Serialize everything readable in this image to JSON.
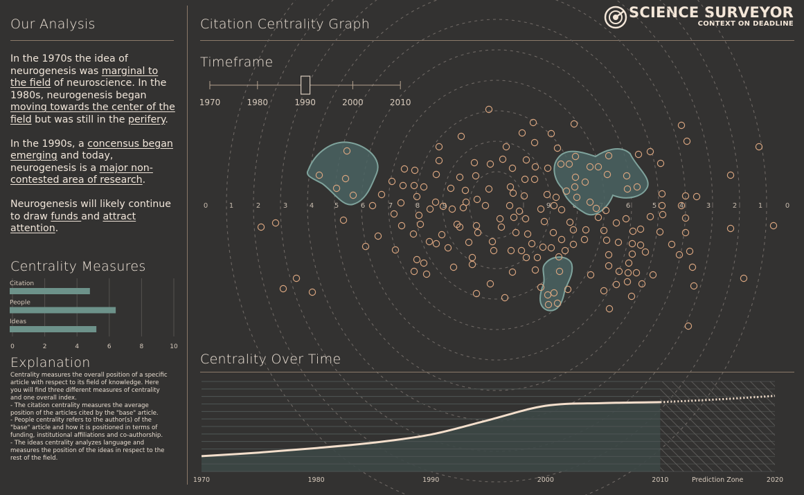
{
  "brand": {
    "name": "SCIENCE SURVEYOR",
    "tagline": "CONTEXT ON DEADLINE",
    "logo": "radar-logo-icon"
  },
  "sidebar": {
    "title": "Our Analysis",
    "paragraphs": [
      [
        {
          "t": "In the 1970s the idea of neurogenesis was "
        },
        {
          "t": "marginal to the field",
          "link": true
        },
        {
          "t": " of neuroscience. In the 1980s, neurogenesis began "
        },
        {
          "t": "moving towards the center of the field",
          "link": true
        },
        {
          "t": " but was still in the "
        },
        {
          "t": "perifery",
          "link": true
        },
        {
          "t": "."
        }
      ],
      [
        {
          "t": "In the 1990s, a "
        },
        {
          "t": "concensus began emerging",
          "link": true
        },
        {
          "t": " and today, neurogenesis is a "
        },
        {
          "t": "major non-contested area of research",
          "link": true
        },
        {
          "t": "."
        }
      ],
      [
        {
          "t": "Neurogenesis will likely continue to draw "
        },
        {
          "t": "funds ",
          "link": true
        },
        {
          "t": "and "
        },
        {
          "t": "attract attention",
          "link": true
        },
        {
          "t": "."
        }
      ]
    ],
    "measures_title": "Centrality Measures",
    "measures": [
      {
        "label": "Citation",
        "value": 4.8
      },
      {
        "label": "People",
        "value": 6.4
      },
      {
        "label": "Ideas",
        "value": 5.2
      }
    ],
    "measures_axis": {
      "ticks": [
        "0",
        "2",
        "4",
        "6",
        "8",
        "10"
      ],
      "max": 10
    },
    "explanation_title": "Explanation",
    "explanation_lines": [
      "Centrality measures the overall position of a specific",
      "article with respect to its field of knowledge. Here",
      "you will find three different measures of centrality",
      "and one overall index.",
      "- The citation centrality measures the average",
      "position of the articles cited by the \"base\" article.",
      "- People centrality refers to the author(s) of the",
      "\"base\" article and how it is positioned in terms of",
      "funding, institutional affiliations and co-authorship.",
      "- The ideas centrality analyzes language and",
      "measures the position of the ideas in respect to the",
      "rest of the field."
    ]
  },
  "graph": {
    "title": "Citation Centrality Graph",
    "timeframe_title": "Timeframe",
    "timeframe_ticks": [
      "1970",
      "1980",
      "1990",
      "2000",
      "2010"
    ],
    "timeframe_selected": "1990",
    "ring_labels_left": [
      "0",
      "1",
      "2",
      "3",
      "4",
      "5",
      "6",
      "7",
      "8",
      "9"
    ],
    "ring_labels_right": [
      "9",
      "8",
      "7",
      "6",
      "5",
      "4",
      "3",
      "2",
      "1",
      "0"
    ]
  },
  "timeline": {
    "title": "Centrality Over Time",
    "x_labels": [
      "1970",
      "1980",
      "1990",
      "2000",
      "2010",
      "2020"
    ],
    "prediction_label": "Prediction Zone"
  },
  "colors": {
    "background": "#333231",
    "accent": "#d9a57f",
    "cluster_fill": "#4a6361",
    "cluster_stroke": "#7fa39c",
    "bar": "#6d928a",
    "line": "#f4dfcc"
  },
  "chart_data": [
    {
      "type": "bar",
      "categories": [
        "Citation",
        "People",
        "Ideas"
      ],
      "values": [
        4.8,
        6.4,
        5.2
      ],
      "title": "Centrality Measures",
      "xlim": [
        0,
        10
      ]
    },
    {
      "type": "area",
      "title": "Centrality Over Time",
      "x": [
        1970,
        1975,
        1980,
        1985,
        1990,
        1995,
        2000,
        2005,
        2010,
        2015,
        2020
      ],
      "values": [
        0.17,
        0.21,
        0.26,
        0.32,
        0.41,
        0.57,
        0.73,
        0.76,
        0.77,
        0.8,
        0.84
      ],
      "prediction_from": 2010,
      "xlim": [
        1970,
        2020
      ],
      "ylim": [
        0,
        1
      ]
    }
  ]
}
